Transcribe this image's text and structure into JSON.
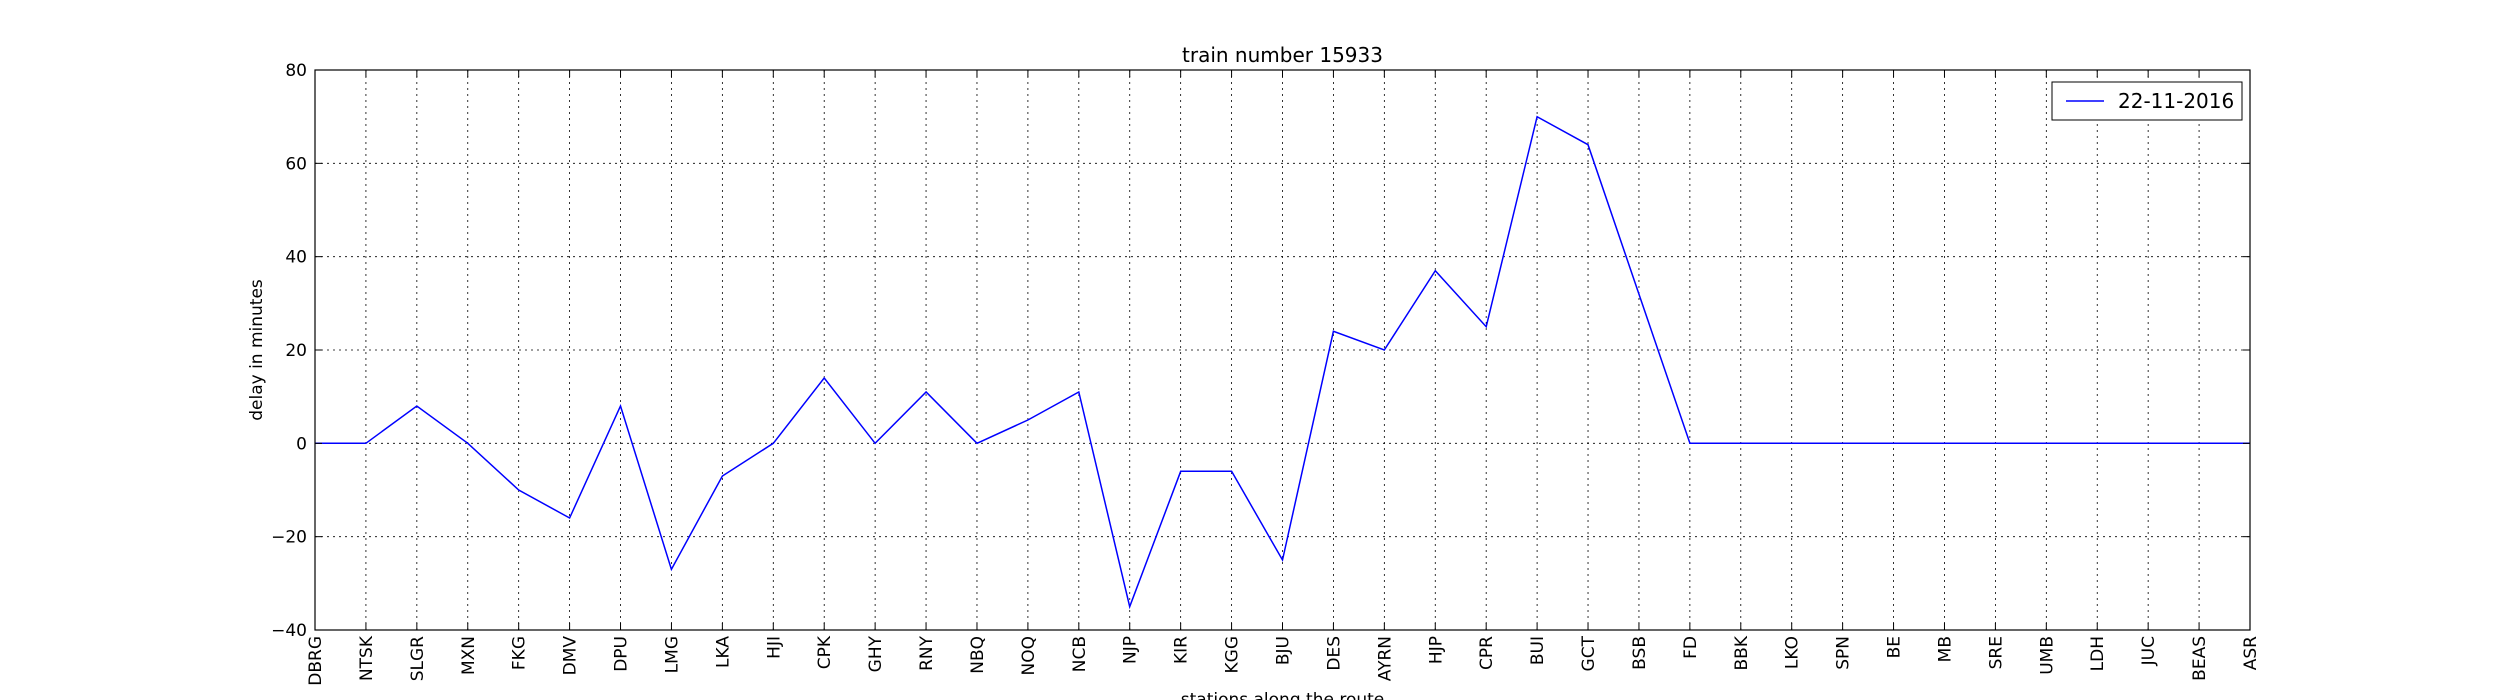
{
  "chart_data": {
    "type": "line",
    "title": "train number 15933",
    "xlabel": "stations along the route",
    "ylabel": "delay in minutes",
    "ylim": [
      -40,
      80
    ],
    "yticks": [
      -40,
      -20,
      0,
      20,
      40,
      60,
      80
    ],
    "grid": true,
    "legend_position": "top-right",
    "categories": [
      "DBRG",
      "NTSK",
      "SLGR",
      "MXN",
      "FKG",
      "DMV",
      "DPU",
      "LMG",
      "LKA",
      "HJI",
      "CPK",
      "GHY",
      "RNY",
      "NBQ",
      "NOQ",
      "NCB",
      "NJP",
      "KIR",
      "KGG",
      "BJU",
      "DES",
      "AYRN",
      "HJP",
      "CPR",
      "BUI",
      "GCT",
      "BSB",
      "FD",
      "BBK",
      "LKO",
      "SPN",
      "BE",
      "MB",
      "SRE",
      "UMB",
      "LDH",
      "JUC",
      "BEAS",
      "ASR"
    ],
    "series": [
      {
        "name": "22-11-2016",
        "color": "#0000ff",
        "values": [
          0,
          0,
          8,
          0,
          -10,
          -16,
          8,
          -27,
          -7,
          0,
          14,
          0,
          11,
          0,
          5,
          11,
          -35,
          -6,
          -6,
          -25,
          24,
          20,
          37,
          25,
          70,
          64,
          32,
          0,
          0,
          0,
          0,
          0,
          0,
          0,
          0,
          0,
          0,
          0,
          0
        ]
      }
    ]
  }
}
